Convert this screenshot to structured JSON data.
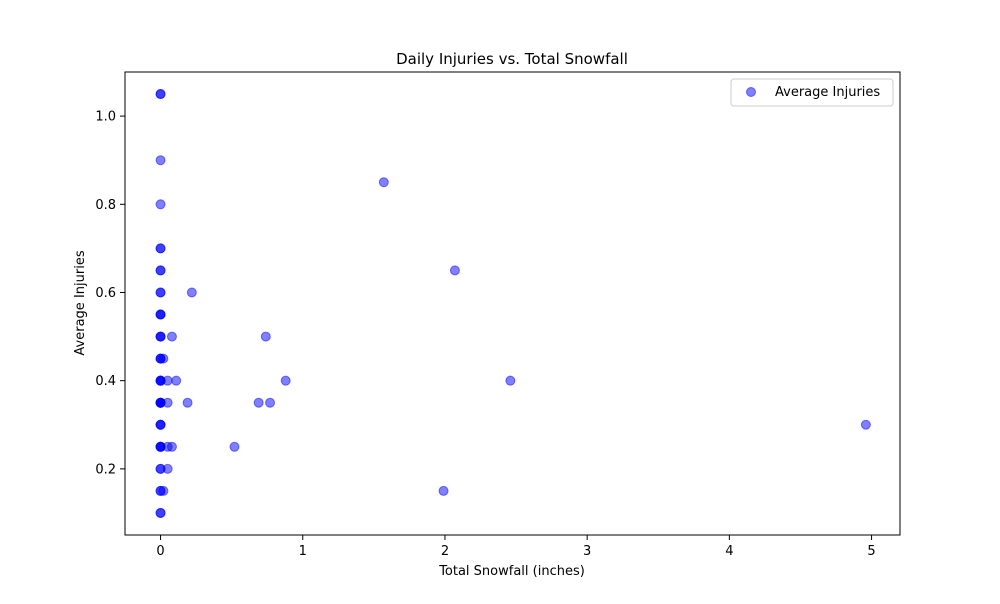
{
  "chart_data": {
    "type": "scatter",
    "title": "Daily Injuries vs. Total Snowfall",
    "xlabel": "Total Snowfall (inches)",
    "ylabel": "Average Injuries",
    "xlim": [
      -0.25,
      5.2
    ],
    "ylim": [
      0.05,
      1.1
    ],
    "xticks": [
      0,
      1,
      2,
      3,
      4,
      5
    ],
    "yticks": [
      0.2,
      0.4,
      0.6,
      0.8,
      1.0
    ],
    "xtick_labels": [
      "0",
      "1",
      "2",
      "3",
      "4",
      "5"
    ],
    "ytick_labels": [
      "0.2",
      "0.4",
      "0.6",
      "0.8",
      "1.0"
    ],
    "grid": false,
    "legend_position": "top-right",
    "series": [
      {
        "name": "Average Injuries",
        "color": "#0000ff",
        "alpha": 0.5,
        "marker": "circle",
        "points": [
          [
            0,
            1.05
          ],
          [
            0,
            1.05
          ],
          [
            0,
            0.9
          ],
          [
            0,
            0.8
          ],
          [
            0,
            0.7
          ],
          [
            0,
            0.7
          ],
          [
            0,
            0.65
          ],
          [
            0,
            0.65
          ],
          [
            0,
            0.6
          ],
          [
            0,
            0.6
          ],
          [
            0,
            0.55
          ],
          [
            0,
            0.55
          ],
          [
            0,
            0.55
          ],
          [
            0,
            0.5
          ],
          [
            0,
            0.5
          ],
          [
            0,
            0.5
          ],
          [
            0,
            0.45
          ],
          [
            0,
            0.45
          ],
          [
            0,
            0.45
          ],
          [
            0,
            0.4
          ],
          [
            0,
            0.4
          ],
          [
            0,
            0.4
          ],
          [
            0,
            0.4
          ],
          [
            0,
            0.35
          ],
          [
            0,
            0.35
          ],
          [
            0,
            0.35
          ],
          [
            0,
            0.35
          ],
          [
            0,
            0.35
          ],
          [
            0,
            0.3
          ],
          [
            0,
            0.3
          ],
          [
            0,
            0.3
          ],
          [
            0,
            0.25
          ],
          [
            0,
            0.25
          ],
          [
            0,
            0.25
          ],
          [
            0,
            0.25
          ],
          [
            0,
            0.2
          ],
          [
            0,
            0.2
          ],
          [
            0,
            0.15
          ],
          [
            0,
            0.15
          ],
          [
            0,
            0.1
          ],
          [
            0,
            0.1
          ],
          [
            0.02,
            0.45
          ],
          [
            0.02,
            0.15
          ],
          [
            0.05,
            0.4
          ],
          [
            0.05,
            0.35
          ],
          [
            0.05,
            0.25
          ],
          [
            0.05,
            0.2
          ],
          [
            0.08,
            0.5
          ],
          [
            0.08,
            0.25
          ],
          [
            0.11,
            0.4
          ],
          [
            0.19,
            0.35
          ],
          [
            0.22,
            0.6
          ],
          [
            0.52,
            0.25
          ],
          [
            0.69,
            0.35
          ],
          [
            0.74,
            0.5
          ],
          [
            0.77,
            0.35
          ],
          [
            0.88,
            0.4
          ],
          [
            1.57,
            0.85
          ],
          [
            1.99,
            0.15
          ],
          [
            2.07,
            0.65
          ],
          [
            2.46,
            0.4
          ],
          [
            4.96,
            0.3
          ]
        ]
      }
    ]
  }
}
